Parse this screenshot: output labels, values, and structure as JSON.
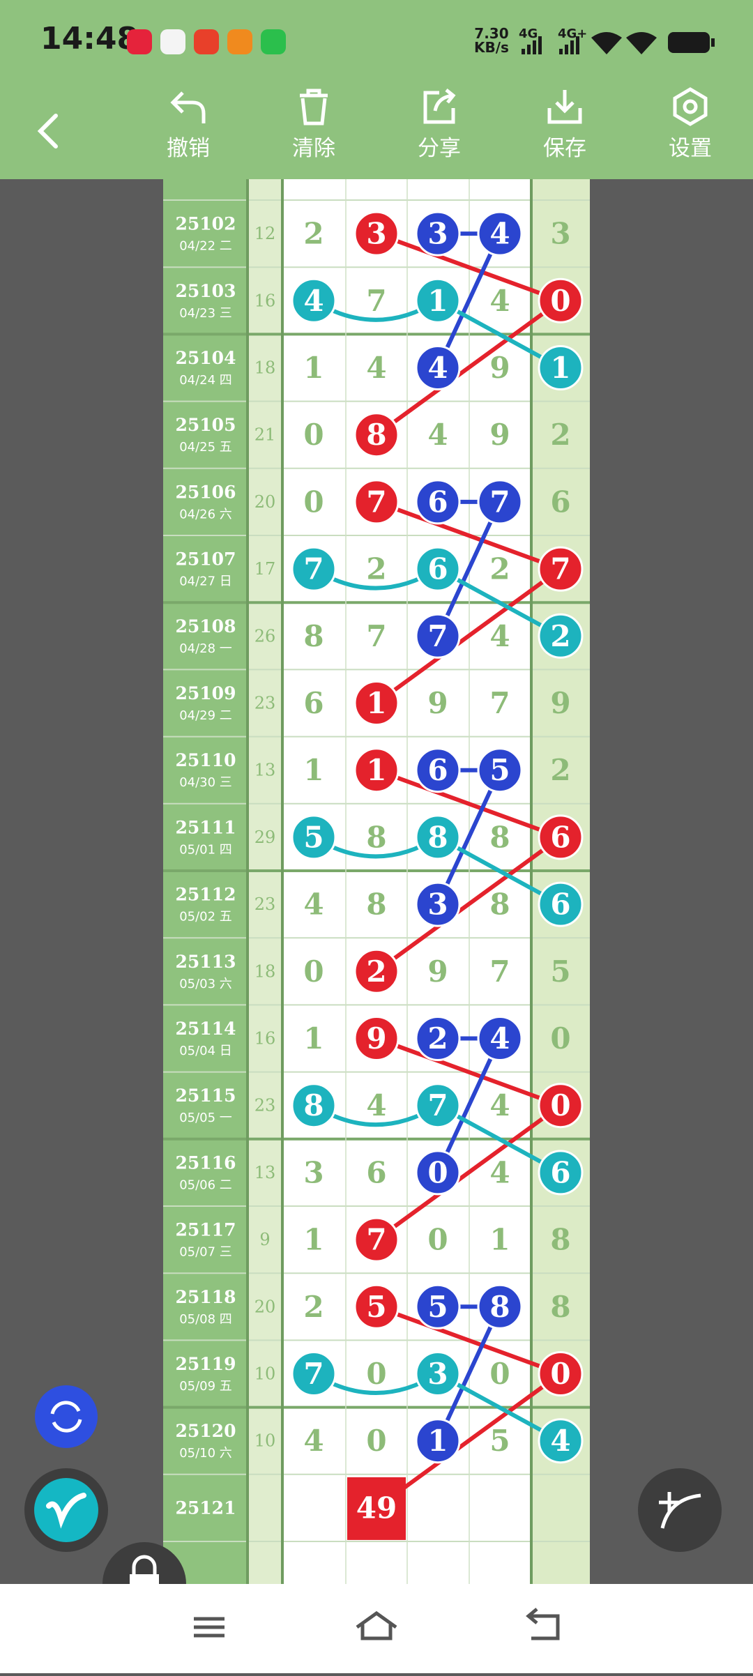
{
  "status_bar": {
    "time": "14:48",
    "speed": "7.30",
    "speed_unit": "KB/s",
    "net1": "4G",
    "net2": "4G+"
  },
  "toolbar": [
    "撤销",
    "清除",
    "分享",
    "保存",
    "设置"
  ],
  "table": {
    "rows": [
      {
        "issue": "25102",
        "date": "04/22 二",
        "sum": 12,
        "digits": [
          2,
          3,
          3,
          4,
          3
        ]
      },
      {
        "issue": "25103",
        "date": "04/23 三",
        "sum": 16,
        "digits": [
          4,
          7,
          1,
          4,
          0
        ]
      },
      {
        "issue": "25104",
        "date": "04/24 四",
        "sum": 18,
        "digits": [
          1,
          4,
          4,
          9,
          1
        ]
      },
      {
        "issue": "25105",
        "date": "04/25 五",
        "sum": 21,
        "digits": [
          0,
          8,
          4,
          9,
          2
        ]
      },
      {
        "issue": "25106",
        "date": "04/26 六",
        "sum": 20,
        "digits": [
          0,
          7,
          6,
          7,
          6
        ]
      },
      {
        "issue": "25107",
        "date": "04/27 日",
        "sum": 17,
        "digits": [
          7,
          2,
          6,
          2,
          7
        ]
      },
      {
        "issue": "25108",
        "date": "04/28 一",
        "sum": 26,
        "digits": [
          8,
          7,
          7,
          4,
          2
        ]
      },
      {
        "issue": "25109",
        "date": "04/29 二",
        "sum": 23,
        "digits": [
          6,
          1,
          9,
          7,
          9
        ]
      },
      {
        "issue": "25110",
        "date": "04/30 三",
        "sum": 13,
        "digits": [
          1,
          1,
          6,
          5,
          2
        ]
      },
      {
        "issue": "25111",
        "date": "05/01 四",
        "sum": 29,
        "digits": [
          5,
          8,
          8,
          8,
          6
        ]
      },
      {
        "issue": "25112",
        "date": "05/02 五",
        "sum": 23,
        "digits": [
          4,
          8,
          3,
          8,
          6
        ]
      },
      {
        "issue": "25113",
        "date": "05/03 六",
        "sum": 18,
        "digits": [
          0,
          2,
          9,
          7,
          5
        ]
      },
      {
        "issue": "25114",
        "date": "05/04 日",
        "sum": 16,
        "digits": [
          1,
          9,
          2,
          4,
          0
        ]
      },
      {
        "issue": "25115",
        "date": "05/05 一",
        "sum": 23,
        "digits": [
          8,
          4,
          7,
          4,
          0
        ]
      },
      {
        "issue": "25116",
        "date": "05/06 二",
        "sum": 13,
        "digits": [
          3,
          6,
          0,
          4,
          6
        ]
      },
      {
        "issue": "25117",
        "date": "05/07 三",
        "sum": 9,
        "digits": [
          1,
          7,
          0,
          1,
          8
        ]
      },
      {
        "issue": "25118",
        "date": "05/08 四",
        "sum": 20,
        "digits": [
          2,
          5,
          5,
          8,
          8
        ]
      },
      {
        "issue": "25119",
        "date": "05/09 五",
        "sum": 10,
        "digits": [
          7,
          0,
          3,
          0,
          0
        ]
      },
      {
        "issue": "25120",
        "date": "05/10 六",
        "sum": 10,
        "digits": [
          4,
          0,
          1,
          5,
          4
        ]
      }
    ],
    "last": {
      "issue": "25121",
      "value": "49"
    }
  }
}
